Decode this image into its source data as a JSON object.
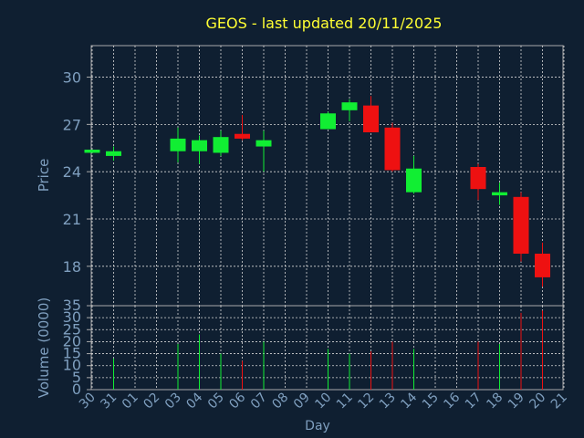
{
  "chart_data": {
    "type": "candlestick",
    "title": "GEOS - last updated 20/11/2025",
    "xlabel": "Day",
    "price_panel": {
      "ylabel": "Price",
      "ylim": [
        15.5,
        32
      ],
      "yticks": [
        18,
        21,
        24,
        27,
        30
      ]
    },
    "volume_panel": {
      "ylabel": "Volume (0000)",
      "ylim": [
        0,
        35
      ],
      "yticks": [
        0,
        5,
        10,
        15,
        20,
        25,
        30,
        35
      ]
    },
    "grid": true,
    "x_ticks": [
      "30",
      "31",
      "01",
      "02",
      "03",
      "04",
      "05",
      "06",
      "07",
      "08",
      "09",
      "10",
      "11",
      "12",
      "13",
      "14",
      "15",
      "16",
      "17",
      "18",
      "19",
      "20",
      "21"
    ],
    "candles": [
      {
        "day": "30",
        "open": 25.2,
        "close": 25.4,
        "high": 25.4,
        "low": 25.2,
        "volume": 0
      },
      {
        "day": "31",
        "open": 25.0,
        "close": 25.3,
        "high": 25.6,
        "low": 24.7,
        "volume": 13
      },
      {
        "day": "03",
        "open": 25.3,
        "close": 26.1,
        "high": 26.8,
        "low": 24.6,
        "volume": 19
      },
      {
        "day": "04",
        "open": 25.3,
        "close": 26.0,
        "high": 26.3,
        "low": 24.5,
        "volume": 23
      },
      {
        "day": "05",
        "open": 25.2,
        "close": 26.2,
        "high": 26.6,
        "low": 25.0,
        "volume": 15
      },
      {
        "day": "06",
        "open": 26.4,
        "close": 26.1,
        "high": 27.6,
        "low": 26.0,
        "volume": 12
      },
      {
        "day": "07",
        "open": 25.6,
        "close": 26.0,
        "high": 26.6,
        "low": 24.0,
        "volume": 20
      },
      {
        "day": "10",
        "open": 26.7,
        "close": 27.7,
        "high": 27.8,
        "low": 26.7,
        "volume": 17
      },
      {
        "day": "11",
        "open": 27.9,
        "close": 28.4,
        "high": 28.6,
        "low": 27.2,
        "volume": 15
      },
      {
        "day": "12",
        "open": 28.2,
        "close": 26.5,
        "high": 28.8,
        "low": 26.5,
        "volume": 16
      },
      {
        "day": "13",
        "open": 26.8,
        "close": 24.1,
        "high": 27.1,
        "low": 24.0,
        "volume": 20
      },
      {
        "day": "14",
        "open": 22.7,
        "close": 24.2,
        "high": 25.0,
        "low": 22.6,
        "volume": 17
      },
      {
        "day": "17",
        "open": 24.3,
        "close": 22.9,
        "high": 24.5,
        "low": 22.2,
        "volume": 20
      },
      {
        "day": "18",
        "open": 22.5,
        "close": 22.7,
        "high": 23.3,
        "low": 21.9,
        "volume": 19
      },
      {
        "day": "19",
        "open": 22.4,
        "close": 18.8,
        "high": 22.7,
        "low": 18.3,
        "volume": 32
      },
      {
        "day": "20",
        "open": 18.8,
        "close": 17.3,
        "high": 19.5,
        "low": 16.7,
        "volume": 33
      }
    ],
    "colors": {
      "up": "#11ee33",
      "down": "#ee1111",
      "background": "#0f1f31",
      "grid": "#d8d8d8",
      "axis_text": "#7f9fbf",
      "title": "#ffff33",
      "frame": "#aaaaaa"
    }
  }
}
